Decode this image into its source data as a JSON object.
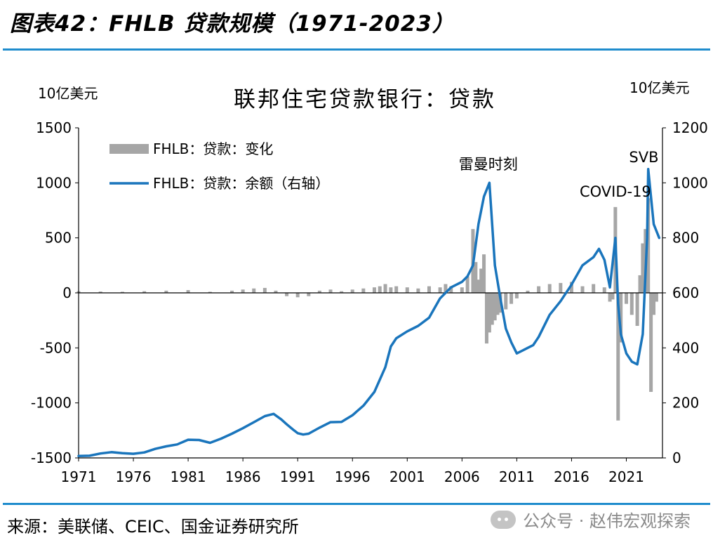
{
  "figure": {
    "title": "图表42：FHLB 贷款规模（1971-2023）",
    "source": "来源：美联储、CEIC、国金证券研究所",
    "watermark": "公众号 · 赵伟宏观探索",
    "watermark_icon": "wechat-icon"
  },
  "chart_data": {
    "type": "bar+line",
    "title": "联邦住宅贷款银行：贷款",
    "y_left_unit": "10亿美元",
    "y_right_unit": "10亿美元",
    "y_left_range": [
      -1500,
      1500
    ],
    "y_left_ticks": [
      -1500,
      -1000,
      -500,
      0,
      500,
      1000,
      1500
    ],
    "y_left_tick_labels": [
      "-1500",
      "-1000",
      "-500",
      "0",
      "500",
      "1000",
      "1500"
    ],
    "y_right_range": [
      0,
      1200
    ],
    "y_right_ticks": [
      0,
      200,
      400,
      600,
      800,
      1000,
      1200
    ],
    "y_right_tick_labels": [
      "0",
      "200",
      "400",
      "600",
      "800",
      "1000",
      "1200"
    ],
    "x_range": [
      1971,
      2024.3
    ],
    "x_ticks": [
      1971,
      1976,
      1981,
      1986,
      1991,
      1996,
      2001,
      2006,
      2011,
      2016,
      2021
    ],
    "x_tick_labels": [
      "1971",
      "1976",
      "1981",
      "1986",
      "1991",
      "1996",
      "2001",
      "2006",
      "2011",
      "2016",
      "2021"
    ],
    "grid": false,
    "legend_position": "top-left",
    "colors": {
      "bars": "#a6a6a6",
      "line": "#1a75bc",
      "zero_line": "#000000"
    },
    "annotations": [
      {
        "text": "雷曼时刻",
        "x": 2008.4,
        "y_right": 1050
      },
      {
        "text": "COVID-19",
        "x": 2020.0,
        "y_right": 950
      },
      {
        "text": "SVB",
        "x": 2022.6,
        "y_right": 1075
      }
    ],
    "series": [
      {
        "name": "FHLB：贷款：变化",
        "type": "bar",
        "axis": "left",
        "x": [
          1971,
          1973,
          1975,
          1977,
          1979,
          1981,
          1983,
          1985,
          1986,
          1987,
          1988,
          1989,
          1990,
          1991,
          1992,
          1993,
          1994,
          1995,
          1996,
          1997,
          1998,
          1998.5,
          1999,
          1999.5,
          2000,
          2001,
          2002,
          2003,
          2004,
          2004.5,
          2005,
          2006,
          2006.5,
          2007,
          2007.25,
          2007.5,
          2007.75,
          2008,
          2008.25,
          2008.5,
          2008.75,
          2009,
          2009.25,
          2009.5,
          2010,
          2010.5,
          2011,
          2012,
          2013,
          2014,
          2015,
          2016,
          2017,
          2018,
          2019,
          2019.5,
          2019.75,
          2020,
          2020.25,
          2020.5,
          2021,
          2021.5,
          2022,
          2022.25,
          2022.5,
          2022.75,
          2023,
          2023.25,
          2023.5,
          2023.75
        ],
        "values": [
          15,
          12,
          10,
          15,
          20,
          25,
          10,
          20,
          30,
          40,
          45,
          20,
          -30,
          -40,
          -30,
          20,
          30,
          15,
          30,
          40,
          50,
          60,
          80,
          50,
          60,
          50,
          40,
          60,
          50,
          80,
          60,
          50,
          150,
          580,
          280,
          120,
          220,
          350,
          -460,
          -360,
          -290,
          -250,
          -200,
          -180,
          -150,
          -100,
          -50,
          20,
          60,
          80,
          90,
          100,
          60,
          80,
          50,
          -80,
          -60,
          780,
          -1160,
          -450,
          -100,
          -200,
          -300,
          160,
          450,
          580,
          860,
          -900,
          -200,
          -80
        ]
      },
      {
        "name": "FHLB：贷款：余额（右轴）",
        "type": "line",
        "axis": "right",
        "x": [
          1971,
          1972,
          1973,
          1974,
          1975,
          1976,
          1977,
          1978,
          1979,
          1980,
          1981,
          1982,
          1983,
          1984,
          1985,
          1986,
          1987,
          1988,
          1988.8,
          1989.5,
          1990,
          1990.6,
          1991,
          1991.5,
          1992,
          1993,
          1994,
          1995,
          1996,
          1997,
          1998,
          1999,
          1999.5,
          2000,
          2001,
          2002,
          2003,
          2004,
          2005,
          2006,
          2006.5,
          2007,
          2007.5,
          2008,
          2008.5,
          2009,
          2009.5,
          2010,
          2010.5,
          2011,
          2011.5,
          2012,
          2012.5,
          2013,
          2014,
          2015,
          2016,
          2017,
          2018,
          2018.5,
          2019,
          2019.5,
          2020,
          2020.25,
          2020.5,
          2021,
          2021.5,
          2022,
          2022.5,
          2022.9,
          2023,
          2023.5,
          2024
        ],
        "values": [
          7,
          8,
          16,
          21,
          17,
          15,
          20,
          33,
          42,
          49,
          66,
          65,
          55,
          70,
          88,
          108,
          130,
          152,
          160,
          140,
          122,
          102,
          90,
          85,
          88,
          110,
          130,
          131,
          155,
          190,
          240,
          330,
          405,
          435,
          460,
          480,
          510,
          580,
          620,
          640,
          660,
          700,
          850,
          950,
          1000,
          700,
          580,
          470,
          420,
          380,
          390,
          400,
          410,
          440,
          520,
          570,
          630,
          700,
          730,
          760,
          720,
          620,
          800,
          560,
          450,
          380,
          350,
          340,
          450,
          800,
          1050,
          850,
          800
        ]
      }
    ]
  }
}
